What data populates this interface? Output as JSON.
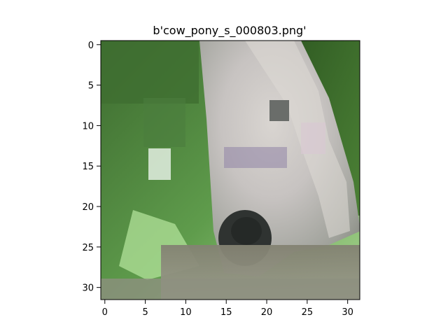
{
  "figure": {
    "title": "b'cow_pony_s_000803.png'"
  },
  "image": {
    "description_name": "pony-photo",
    "grid_size": [
      32,
      32
    ]
  },
  "axes": {
    "y_ticks": [
      {
        "value": 0,
        "label": "0"
      },
      {
        "value": 5,
        "label": "5"
      },
      {
        "value": 10,
        "label": "10"
      },
      {
        "value": 15,
        "label": "15"
      },
      {
        "value": 20,
        "label": "20"
      },
      {
        "value": 25,
        "label": "25"
      },
      {
        "value": 30,
        "label": "30"
      }
    ],
    "x_ticks": [
      {
        "value": 0,
        "label": "0"
      },
      {
        "value": 5,
        "label": "5"
      },
      {
        "value": 10,
        "label": "10"
      },
      {
        "value": 15,
        "label": "15"
      },
      {
        "value": 20,
        "label": "20"
      },
      {
        "value": 25,
        "label": "25"
      },
      {
        "value": 30,
        "label": "30"
      }
    ],
    "xlim": [
      -0.5,
      31.5
    ],
    "ylim": [
      31.5,
      -0.5
    ]
  }
}
